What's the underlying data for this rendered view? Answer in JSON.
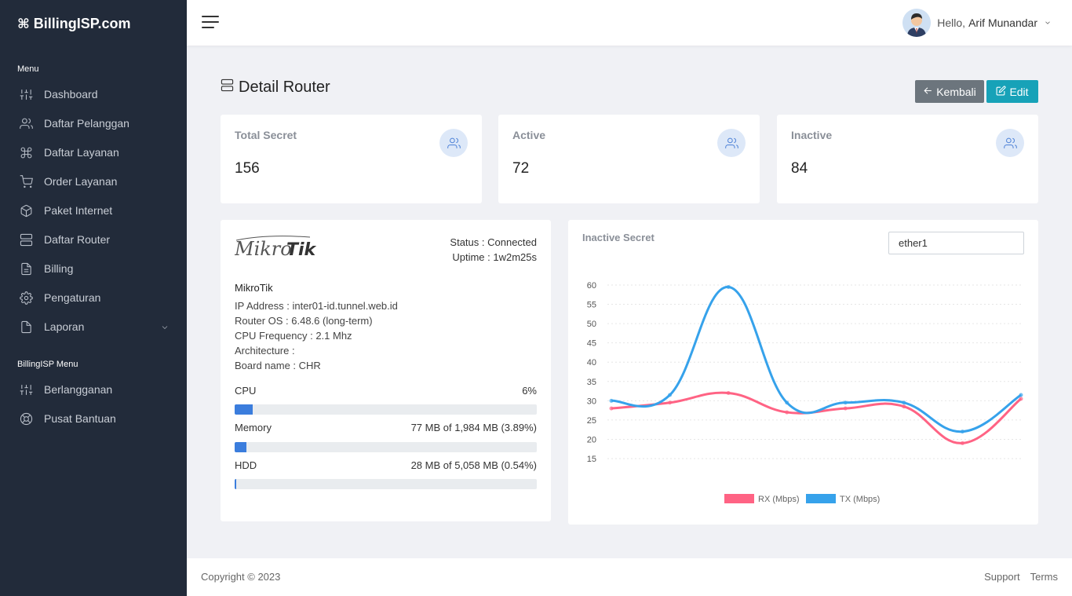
{
  "brand": {
    "name": "BillingISP.com",
    "icon": "command-icon"
  },
  "sidebar": {
    "menu_heading": "Menu",
    "items": [
      {
        "label": "Dashboard",
        "icon": "sliders-icon"
      },
      {
        "label": "Daftar Pelanggan",
        "icon": "users-icon"
      },
      {
        "label": "Daftar Layanan",
        "icon": "command-icon"
      },
      {
        "label": "Order Layanan",
        "icon": "cart-icon"
      },
      {
        "label": "Paket Internet",
        "icon": "package-icon"
      },
      {
        "label": "Daftar Router",
        "icon": "server-icon"
      },
      {
        "label": "Billing",
        "icon": "file-text-icon"
      },
      {
        "label": "Pengaturan",
        "icon": "settings-icon"
      },
      {
        "label": "Laporan",
        "icon": "file-icon"
      }
    ],
    "section2_heading": "BillingISP Menu",
    "section2_items": [
      {
        "label": "Berlangganan",
        "icon": "sliders-icon"
      },
      {
        "label": "Pusat Bantuan",
        "icon": "lifebuoy-icon"
      }
    ]
  },
  "header": {
    "greeting": "Hello,",
    "user_name": "Arif Munandar"
  },
  "page": {
    "title": "Detail Router",
    "back_label": "Kembali",
    "edit_label": "Edit"
  },
  "stats": [
    {
      "title": "Total Secret",
      "value": "156"
    },
    {
      "title": "Active",
      "value": "72"
    },
    {
      "title": "Inactive",
      "value": "84"
    }
  ],
  "router": {
    "logo_text_a": "Mikro",
    "logo_text_b": "Tik",
    "status": "Status : Connected",
    "uptime": "Uptime : 1w2m25s",
    "name": "MikroTik",
    "ip": "IP Address : inter01-id.tunnel.web.id",
    "os": "Router OS : 6.48.6 (long-term)",
    "cpu_freq": "CPU Frequency : 2.1 Mhz",
    "arch": "Architecture :",
    "board": "Board name : CHR",
    "resources": [
      {
        "label": "CPU",
        "value": "6%",
        "fraction": 0.06
      },
      {
        "label": "Memory",
        "value": "77 MB of 1,984 MB (3.89%)",
        "fraction": 0.0389
      },
      {
        "label": "HDD",
        "value": "28 MB of 5,058 MB (0.54%)",
        "fraction": 0.0054
      }
    ]
  },
  "chart_panel": {
    "title": "Inactive Secret",
    "interface": "ether1"
  },
  "chart_data": {
    "type": "line",
    "x": [
      1,
      2,
      3,
      4,
      5,
      6,
      7,
      8
    ],
    "ylim": [
      15,
      60
    ],
    "yticks": [
      "60",
      "55",
      "50",
      "45",
      "40",
      "35",
      "30",
      "25",
      "20",
      "15"
    ],
    "grid": true,
    "legend": "bottom",
    "series": [
      {
        "name": "RX (Mbps)",
        "color": "#ff6384",
        "values": [
          28,
          29.5,
          32,
          27,
          28,
          28.5,
          19,
          30.5
        ]
      },
      {
        "name": "TX (Mbps)",
        "color": "#36a2eb",
        "values": [
          30,
          31.5,
          59.5,
          29.5,
          29.5,
          29.5,
          22,
          31.5
        ]
      }
    ]
  },
  "footer": {
    "copyright": "Copyright © 2023",
    "links": [
      "Support",
      "Terms"
    ]
  },
  "colors": {
    "sidebar_bg": "#222b3a",
    "primary": "#3b7ddd",
    "info": "#17a2b8",
    "secondary": "#6c757d"
  }
}
